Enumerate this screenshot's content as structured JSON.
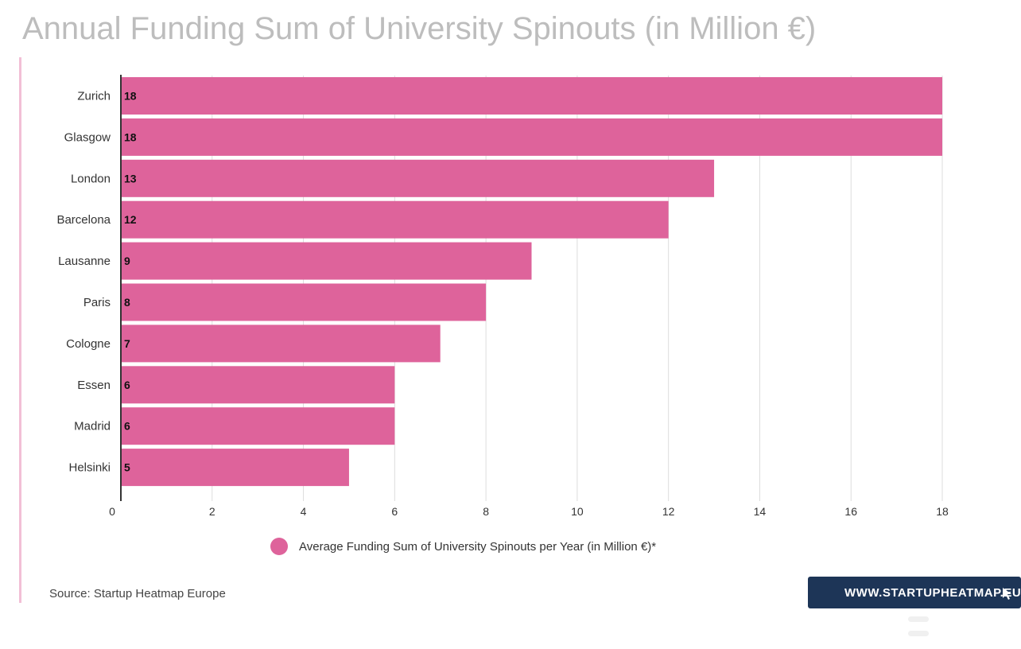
{
  "title": "Annual Funding Sum of University Spinouts (in Million €)",
  "source": "Source: Startup Heatmap Europe",
  "brand": {
    "label": "WWW.STARTUPHEATMAP.EU",
    "icon": "cursor-arrow-icon"
  },
  "colors": {
    "bar": "#de639b",
    "accent": "#f2bfd6",
    "title": "#bdbdbd",
    "brand_bg": "#1d3557"
  },
  "chart_data": {
    "type": "bar",
    "orientation": "horizontal",
    "title": "Annual Funding Sum of University Spinouts (in Million €)",
    "categories": [
      "Zurich",
      "Glasgow",
      "London",
      "Barcelona",
      "Lausanne",
      "Paris",
      "Cologne",
      "Essen",
      "Madrid",
      "Helsinki"
    ],
    "series": [
      {
        "name": "Average Funding Sum of University Spinouts per Year (in Million €)*",
        "values": [
          18,
          18,
          13,
          12,
          9,
          8,
          7,
          6,
          6,
          5
        ]
      }
    ],
    "xlim": [
      0,
      18
    ],
    "xticks": [
      0,
      2,
      4,
      6,
      8,
      10,
      12,
      14,
      16,
      18
    ],
    "grid": "vertical",
    "data_labels": true,
    "legend_position": "bottom"
  }
}
